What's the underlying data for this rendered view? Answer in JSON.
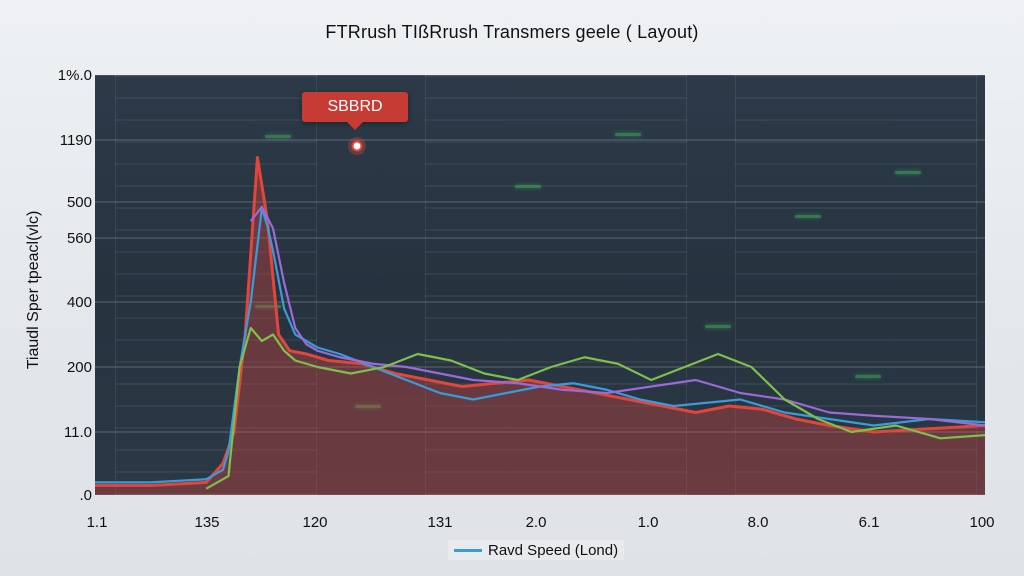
{
  "chart_data": {
    "type": "line",
    "title": "FTRrush TIßRrush Transmers geele ( Layout)",
    "xlabel": "",
    "ylabel": "Tiaudl Sper tpeacl(vlc)",
    "x_tick_labels": [
      "1.1",
      "135",
      "120",
      "131",
      "2.0",
      "1.0",
      "8.0",
      "6.1",
      "100"
    ],
    "y_tick_labels": [
      ".0",
      "11.0",
      "200",
      "400",
      "560",
      "500",
      "1190",
      "1%.0"
    ],
    "grid": true,
    "legend_position": "bottom-center",
    "legend": [
      {
        "name": "Ravd Speed (Lond)",
        "color": "#3a9bd9"
      }
    ],
    "annotation": {
      "label": "SBBRD",
      "x": 1.46,
      "y": 1080
    },
    "colors": {
      "red": "#e0463c",
      "blue": "#3a9bd9",
      "purple": "#9b6ad6",
      "green": "#7fbf4a"
    },
    "series": [
      {
        "color_key": "red",
        "fill": true,
        "points": [
          [
            0,
            15
          ],
          [
            0.5,
            15
          ],
          [
            1.0,
            20
          ],
          [
            1.15,
            50
          ],
          [
            1.25,
            100
          ],
          [
            1.35,
            300
          ],
          [
            1.46,
            1080
          ],
          [
            1.55,
            650
          ],
          [
            1.65,
            300
          ],
          [
            1.75,
            250
          ],
          [
            1.9,
            240
          ],
          [
            2.1,
            220
          ],
          [
            2.4,
            210
          ],
          [
            2.7,
            190
          ],
          [
            3.0,
            180
          ],
          [
            3.3,
            170
          ],
          [
            3.6,
            175
          ],
          [
            3.9,
            180
          ],
          [
            4.2,
            170
          ],
          [
            4.5,
            160
          ],
          [
            4.8,
            150
          ],
          [
            5.1,
            140
          ],
          [
            5.4,
            130
          ],
          [
            5.7,
            140
          ],
          [
            6.0,
            135
          ],
          [
            6.3,
            120
          ],
          [
            6.6,
            110
          ],
          [
            7.0,
            100
          ],
          [
            7.5,
            105
          ],
          [
            8.0,
            110
          ]
        ]
      },
      {
        "color_key": "blue",
        "fill": false,
        "points": [
          [
            0,
            20
          ],
          [
            0.5,
            20
          ],
          [
            1.0,
            25
          ],
          [
            1.15,
            40
          ],
          [
            1.2,
            70
          ],
          [
            1.3,
            200
          ],
          [
            1.4,
            400
          ],
          [
            1.5,
            750
          ],
          [
            1.55,
            600
          ],
          [
            1.6,
            480
          ],
          [
            1.7,
            380
          ],
          [
            1.8,
            300
          ],
          [
            1.9,
            280
          ],
          [
            2.0,
            260
          ],
          [
            2.2,
            240
          ],
          [
            2.5,
            200
          ],
          [
            2.8,
            180
          ],
          [
            3.1,
            160
          ],
          [
            3.4,
            150
          ],
          [
            3.7,
            160
          ],
          [
            4.0,
            170
          ],
          [
            4.3,
            175
          ],
          [
            4.6,
            165
          ],
          [
            4.9,
            150
          ],
          [
            5.2,
            140
          ],
          [
            5.5,
            145
          ],
          [
            5.8,
            150
          ],
          [
            6.2,
            130
          ],
          [
            6.6,
            120
          ],
          [
            7.0,
            110
          ],
          [
            7.5,
            120
          ],
          [
            8.0,
            115
          ]
        ]
      },
      {
        "color_key": "purple",
        "fill": false,
        "points": [
          [
            1.4,
            640
          ],
          [
            1.5,
            760
          ],
          [
            1.6,
            580
          ],
          [
            1.7,
            430
          ],
          [
            1.8,
            320
          ],
          [
            1.9,
            270
          ],
          [
            2.0,
            250
          ],
          [
            2.2,
            230
          ],
          [
            2.5,
            210
          ],
          [
            2.8,
            200
          ],
          [
            3.1,
            190
          ],
          [
            3.4,
            180
          ],
          [
            3.8,
            175
          ],
          [
            4.2,
            165
          ],
          [
            4.6,
            160
          ],
          [
            5.0,
            170
          ],
          [
            5.4,
            180
          ],
          [
            5.8,
            160
          ],
          [
            6.2,
            150
          ],
          [
            6.6,
            130
          ],
          [
            7.0,
            125
          ],
          [
            7.5,
            120
          ],
          [
            8.0,
            110
          ]
        ]
      },
      {
        "color_key": "green",
        "fill": false,
        "points": [
          [
            1.0,
            10
          ],
          [
            1.2,
            30
          ],
          [
            1.3,
            200
          ],
          [
            1.4,
            320
          ],
          [
            1.5,
            280
          ],
          [
            1.6,
            300
          ],
          [
            1.7,
            250
          ],
          [
            1.8,
            220
          ],
          [
            2.0,
            200
          ],
          [
            2.3,
            190
          ],
          [
            2.6,
            200
          ],
          [
            2.9,
            240
          ],
          [
            3.2,
            220
          ],
          [
            3.5,
            190
          ],
          [
            3.8,
            180
          ],
          [
            4.1,
            200
          ],
          [
            4.4,
            230
          ],
          [
            4.7,
            210
          ],
          [
            5.0,
            180
          ],
          [
            5.3,
            200
          ],
          [
            5.6,
            240
          ],
          [
            5.9,
            200
          ],
          [
            6.2,
            150
          ],
          [
            6.5,
            120
          ],
          [
            6.8,
            100
          ],
          [
            7.2,
            110
          ],
          [
            7.6,
            90
          ],
          [
            8.0,
            95
          ]
        ]
      }
    ]
  }
}
